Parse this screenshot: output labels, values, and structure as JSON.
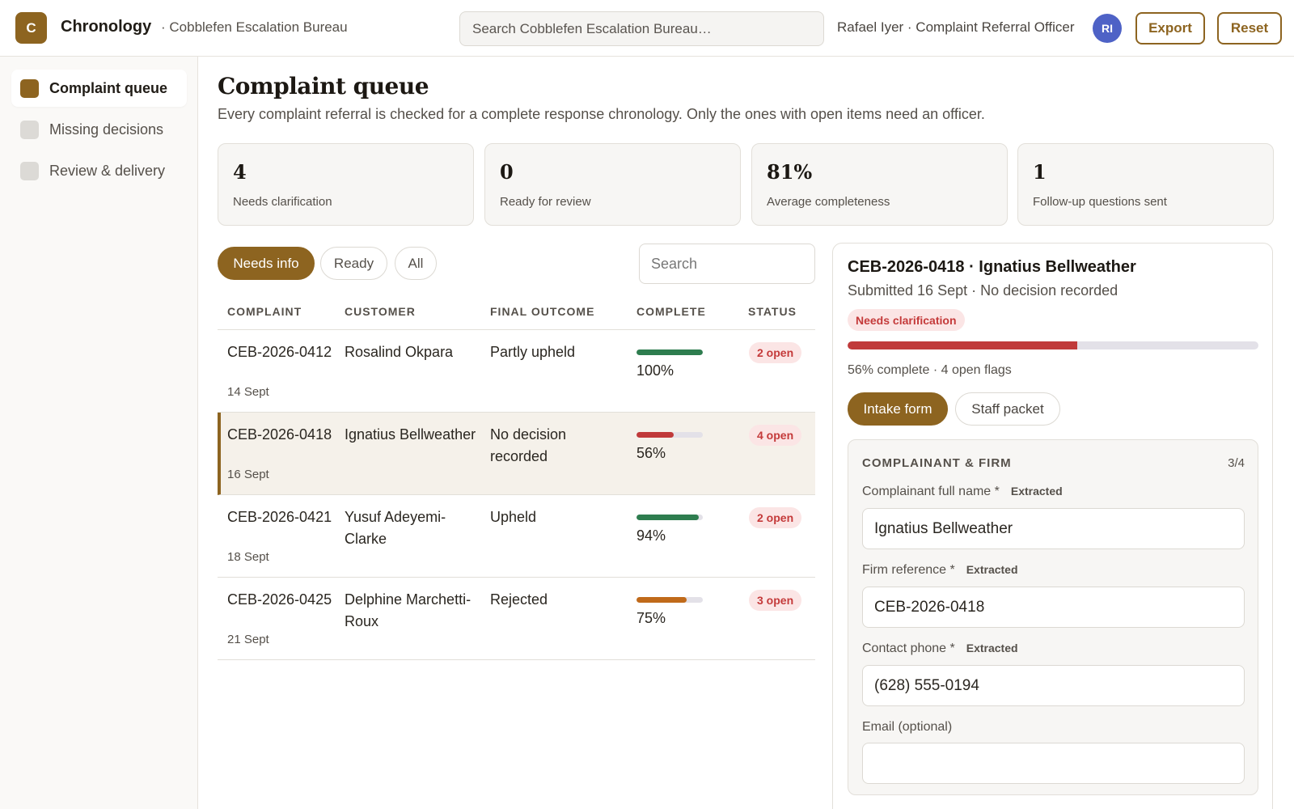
{
  "app": {
    "logo_letter": "C",
    "title": "Chronology",
    "org": "· Cobblefen Escalation Bureau"
  },
  "header": {
    "search_placeholder": "Search Cobblefen Escalation Bureau…",
    "user": "Rafael Iyer · Complaint Referral Officer",
    "avatar_initials": "RI",
    "avatar_color": "#4e62c6",
    "export_label": "Export",
    "reset_label": "Reset"
  },
  "sidebar": {
    "items": [
      {
        "label": "Complaint queue",
        "active": true
      },
      {
        "label": "Missing decisions",
        "active": false
      },
      {
        "label": "Review & delivery",
        "active": false
      }
    ]
  },
  "page": {
    "title": "Complaint queue",
    "description": "Every complaint referral is checked for a complete response chronology. Only the ones with open items need an officer."
  },
  "stats": [
    {
      "value": "4",
      "label": "Needs clarification"
    },
    {
      "value": "0",
      "label": "Ready for review"
    },
    {
      "value": "81%",
      "label": "Average completeness"
    },
    {
      "value": "1",
      "label": "Follow-up questions sent"
    }
  ],
  "filters": {
    "chips": [
      {
        "label": "Needs info",
        "active": true
      },
      {
        "label": "Ready",
        "active": false
      },
      {
        "label": "All",
        "active": false
      }
    ],
    "search_placeholder": "Search"
  },
  "table": {
    "columns": [
      "COMPLAINT",
      "CUSTOMER",
      "FINAL OUTCOME",
      "COMPLETE",
      "STATUS"
    ],
    "rows": [
      {
        "id": "CEB-2026-0412",
        "date": "14 Sept",
        "customer": "Rosalind Okpara",
        "outcome": "Partly upheld",
        "complete": 100,
        "complete_label": "100%",
        "bar_color": "#2e7d4f",
        "status": "2 open",
        "selected": false
      },
      {
        "id": "CEB-2026-0418",
        "date": "16 Sept",
        "customer": "Ignatius Bellweather",
        "outcome": "No decision recorded",
        "complete": 56,
        "complete_label": "56%",
        "bar_color": "#c03a3a",
        "status": "4 open",
        "selected": true
      },
      {
        "id": "CEB-2026-0421",
        "date": "18 Sept",
        "customer": "Yusuf Adeyemi-Clarke",
        "outcome": "Upheld",
        "complete": 94,
        "complete_label": "94%",
        "bar_color": "#2e7d4f",
        "status": "2 open",
        "selected": false
      },
      {
        "id": "CEB-2026-0425",
        "date": "21 Sept",
        "customer": "Delphine Marchetti-Roux",
        "outcome": "Rejected",
        "complete": 75,
        "complete_label": "75%",
        "bar_color": "#c06a1a",
        "status": "3 open",
        "selected": false
      }
    ]
  },
  "detail": {
    "title": "CEB-2026-0418 · Ignatius Bellweather",
    "subtitle": "Submitted 16 Sept · No decision recorded",
    "badge": "Needs clarification",
    "progress": 56,
    "progress_color": "#c03a3a",
    "summary": "56% complete · 4 open flags",
    "tabs": [
      {
        "label": "Intake form",
        "active": true
      },
      {
        "label": "Staff packet",
        "active": false
      }
    ],
    "section": {
      "title": "COMPLAINANT & FIRM",
      "count": "3/4",
      "fields": [
        {
          "label": "Complainant full name *",
          "tag": "Extracted",
          "value": "Ignatius Bellweather"
        },
        {
          "label": "Firm reference *",
          "tag": "Extracted",
          "value": "CEB-2026-0418"
        },
        {
          "label": "Contact phone *",
          "tag": "Extracted",
          "value": "(628) 555-0194"
        },
        {
          "label": "Email (optional)",
          "tag": "",
          "value": ""
        }
      ]
    }
  },
  "colors": {
    "accent": "#8d6420",
    "danger": "#c43a3a",
    "success": "#2e7d4f",
    "warning": "#c06a1a"
  }
}
